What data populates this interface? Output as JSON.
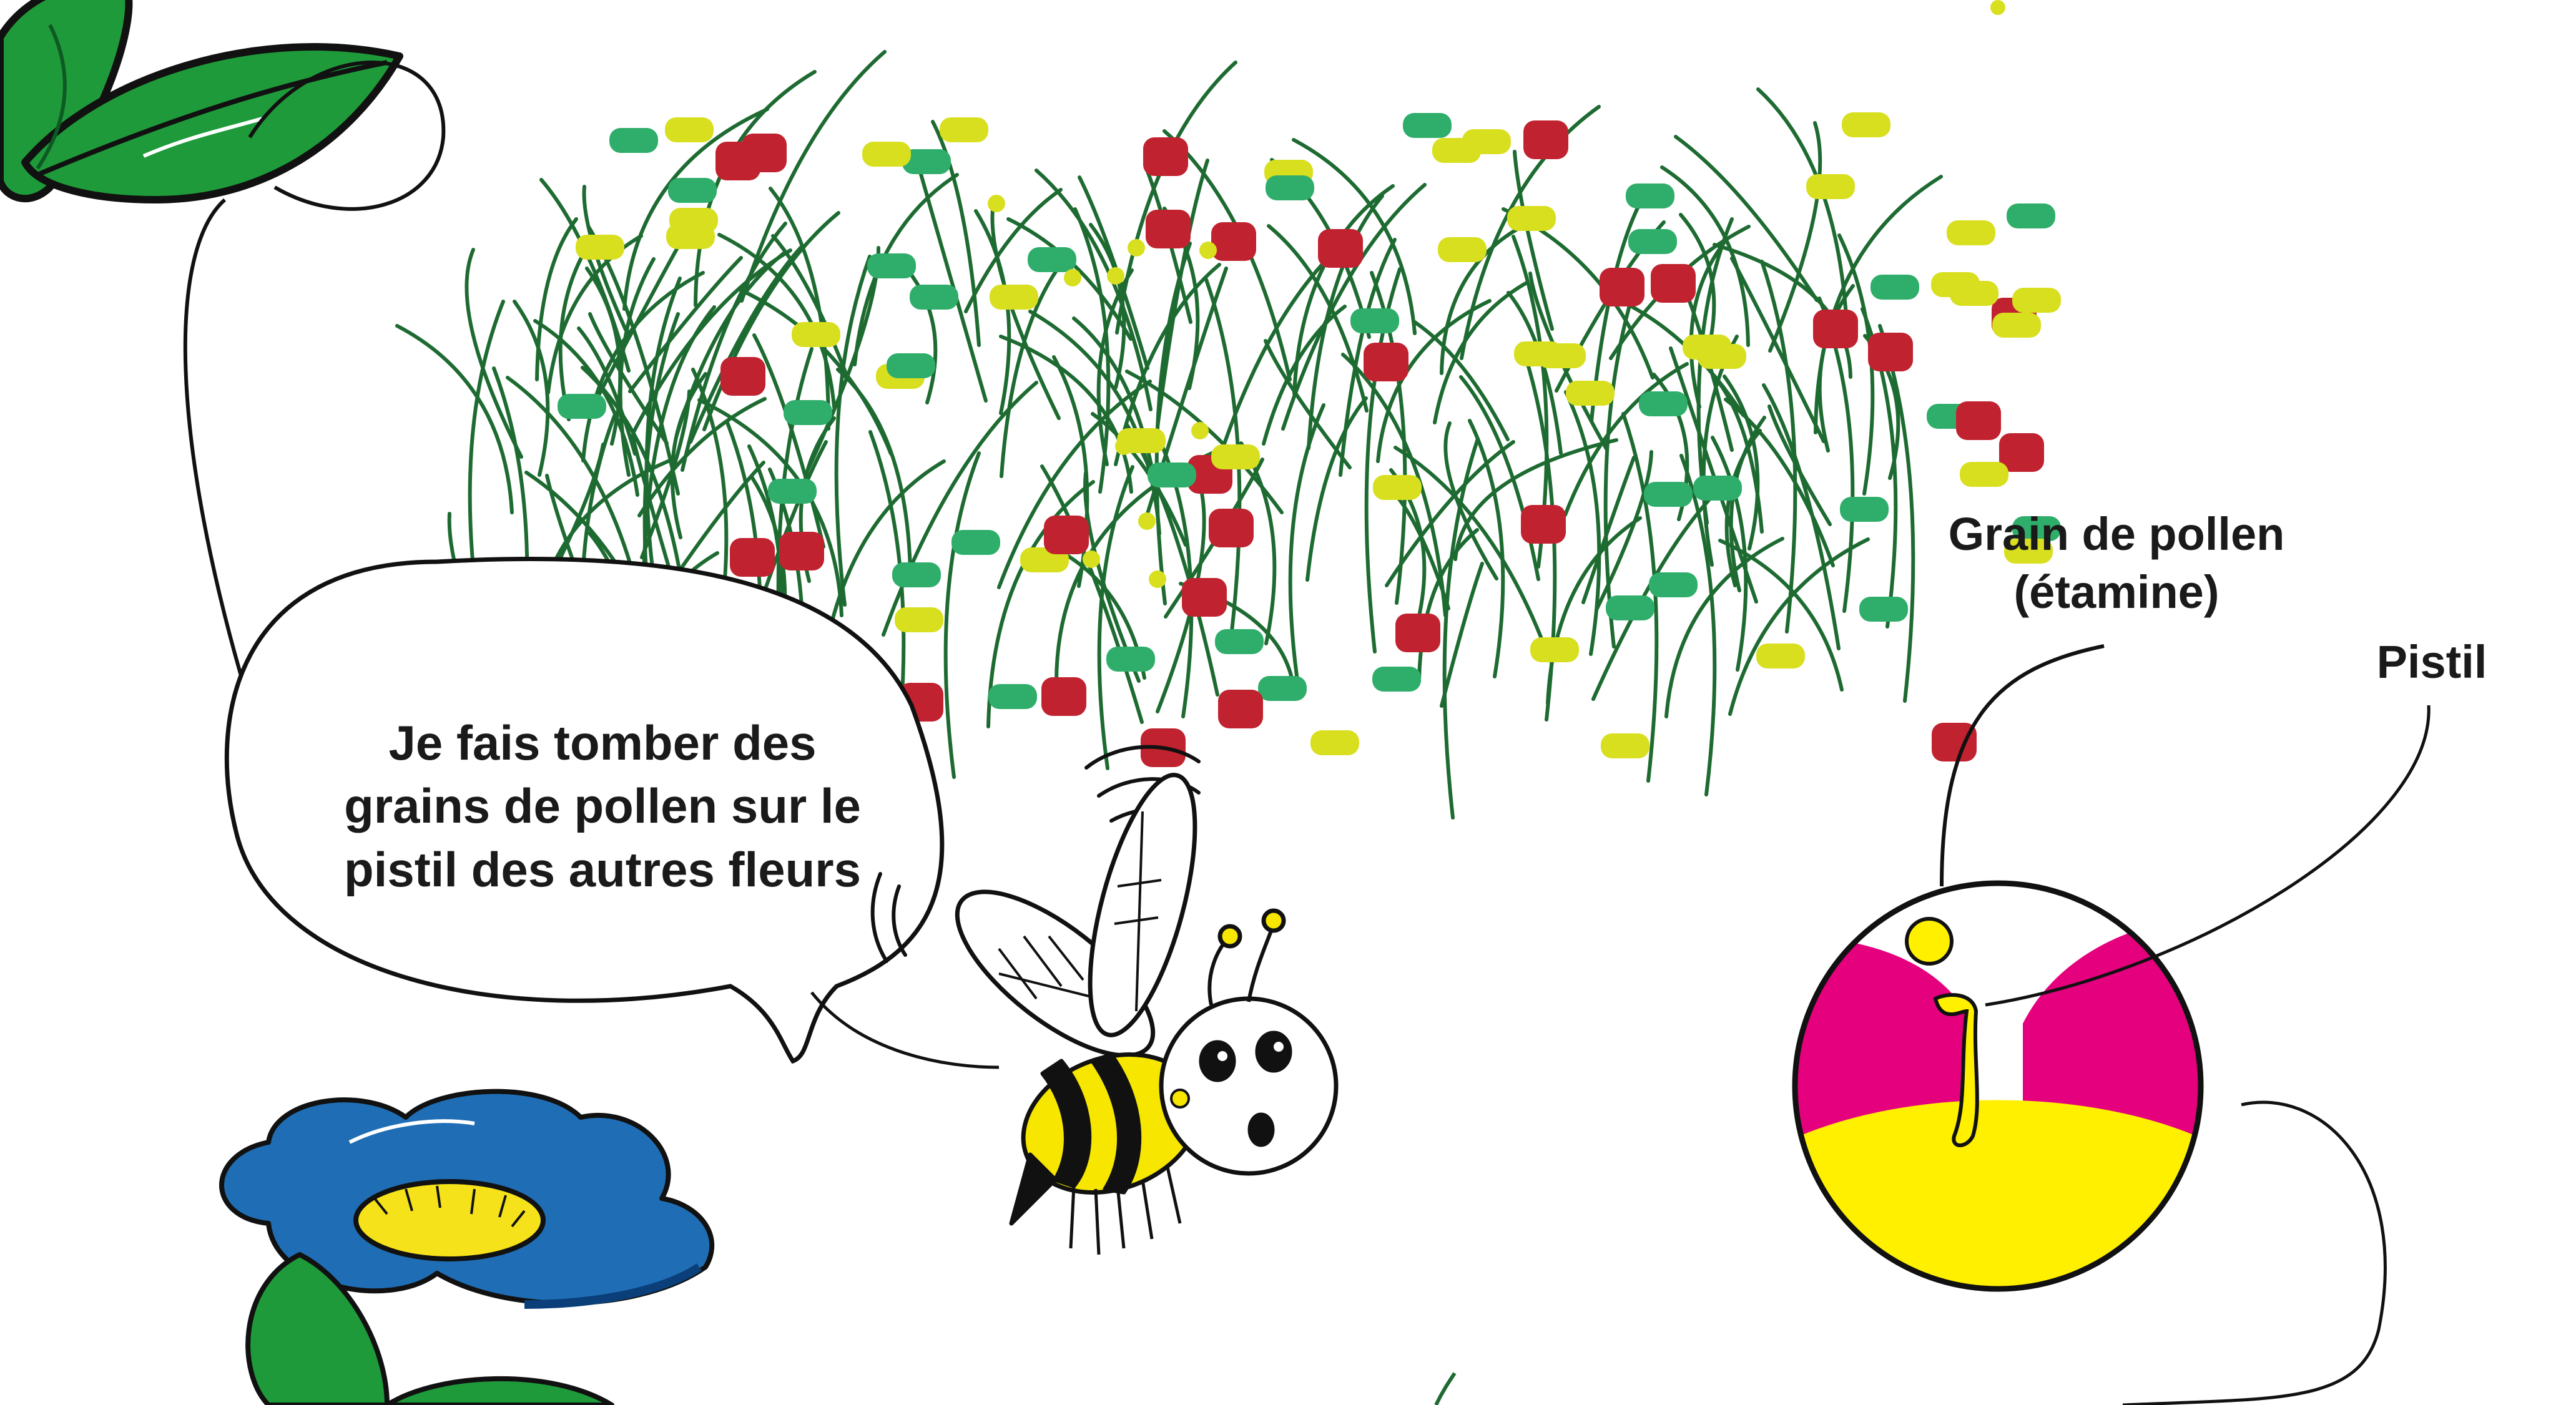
{
  "speech_bubble": {
    "lines": [
      "Je fais tomber des",
      "grains de pollen sur le",
      "pistil des autres fleurs"
    ]
  },
  "labels": {
    "pollen_grain_line1": "Grain de pollen",
    "pollen_grain_line2": "(étamine)",
    "pistil": "Pistil"
  },
  "colors": {
    "leaf_green": "#1f9a3a",
    "grass_green": "#1e6b32",
    "pollen_red": "#c1222f",
    "pollen_yellow": "#d8df1e",
    "pollen_green": "#2fae6b",
    "petal_blue": "#1f6eb5",
    "flower_center": "#f5e21a",
    "circle_magenta": "#e5007e",
    "circle_yellow": "#fff000",
    "bee_yellow": "#f6e600"
  }
}
